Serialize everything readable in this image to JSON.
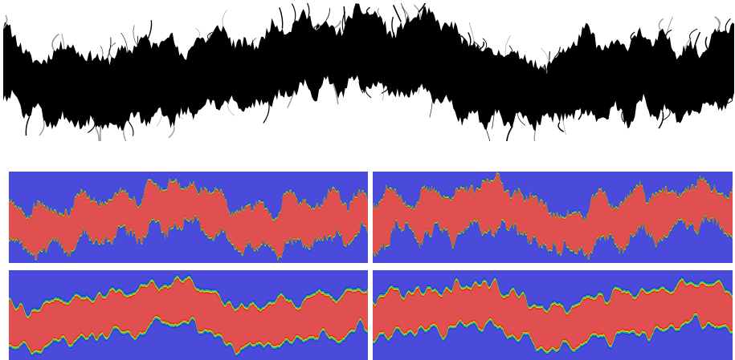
{
  "figure": {
    "panels": [
      {
        "id": "top-silhouette",
        "kind": "binary",
        "fg": "#000000",
        "bg": "#ffffff",
        "seed": 11,
        "phase": 0.0
      },
      {
        "id": "mid-left-contour",
        "kind": "contour",
        "bg": "#4a4adb",
        "core": "#e05050",
        "seed": 21,
        "phase": 0.3
      },
      {
        "id": "mid-right-contour",
        "kind": "contour",
        "bg": "#4a4adb",
        "core": "#e05050",
        "seed": 37,
        "phase": 2.1
      },
      {
        "id": "bottom-left-contour",
        "kind": "contour-smooth",
        "bg": "#4a4adb",
        "core": "#e05050",
        "seed": 53,
        "phase": 0.5
      },
      {
        "id": "bottom-right-contour",
        "kind": "contour-smooth",
        "bg": "#4a4adb",
        "core": "#e05050",
        "seed": 71,
        "phase": 2.4
      }
    ],
    "colormap": [
      "#2b2bb0",
      "#00c8d8",
      "#20c040",
      "#f0e020",
      "#f08000",
      "#c81818",
      "#e05050"
    ]
  }
}
